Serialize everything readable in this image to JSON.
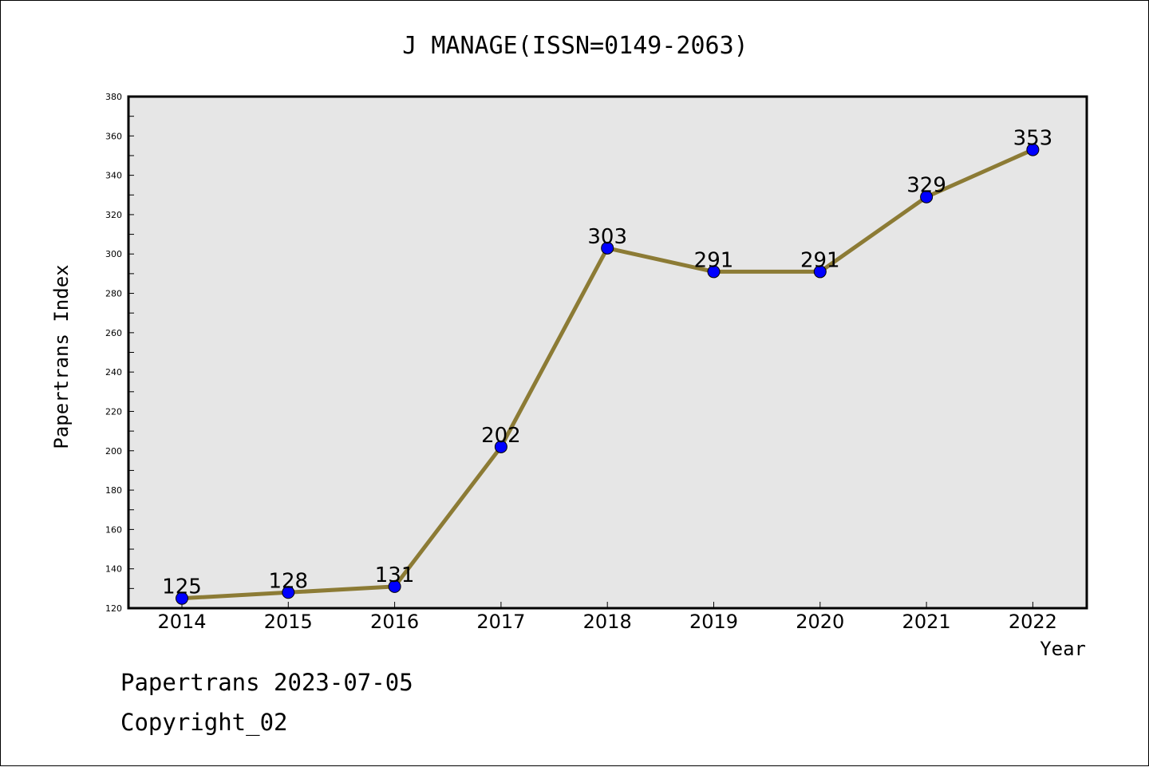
{
  "chart_data": {
    "type": "line",
    "title": "J MANAGE(ISSN=0149-2063)",
    "xlabel": "Year",
    "ylabel": "Papertrans Index",
    "categories": [
      "2014",
      "2015",
      "2016",
      "2017",
      "2018",
      "2019",
      "2020",
      "2021",
      "2022"
    ],
    "series": [
      {
        "values": [
          125,
          128,
          131,
          202,
          303,
          291,
          291,
          329,
          353
        ]
      }
    ],
    "ylim": [
      120,
      380
    ],
    "yticks": [
      120,
      140,
      160,
      180,
      200,
      220,
      240,
      260,
      280,
      300,
      320,
      340,
      360,
      380
    ],
    "data_labels": [
      "125",
      "128",
      "131",
      "202",
      "303",
      "291",
      "291",
      "329",
      "353"
    ],
    "grid": false,
    "legend": "none",
    "colors": {
      "line": "#8c7b35",
      "marker": "#0000ff",
      "plot_bg": "#e6e6e6"
    }
  },
  "footer": {
    "line1": "Papertrans 2023-07-05",
    "line2": "Copyright_02"
  }
}
